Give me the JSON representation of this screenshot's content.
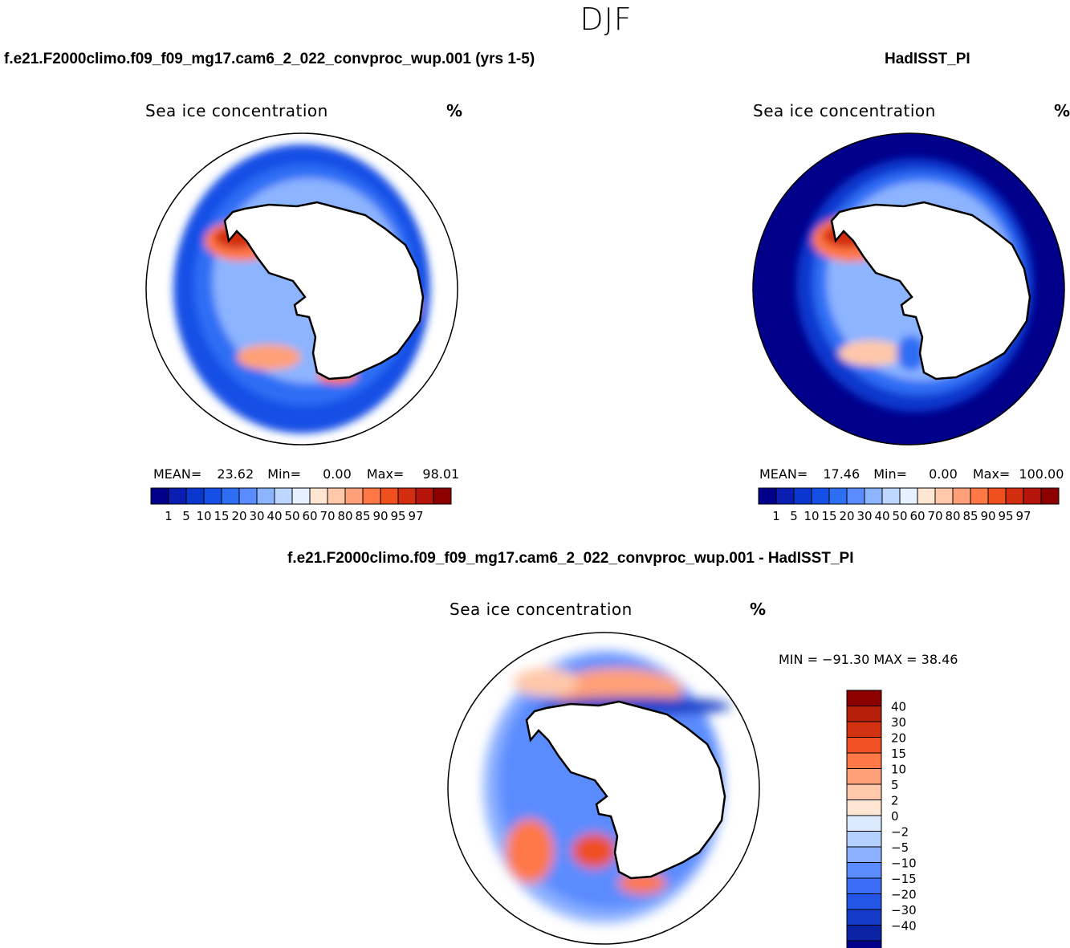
{
  "season": "DJF",
  "panels": [
    {
      "id": "model",
      "case_title": "f.e21.F2000climo.f09_f09_mg17.cam6_2_022_convproc_wup.001 (yrs 1-5)",
      "plot_title": "Sea ice concentration",
      "units": "%",
      "stats": {
        "mean_label": "MEAN=",
        "mean": "23.62",
        "min_label": "Min=",
        "min": "0.00",
        "max_label": "Max=",
        "max": "98.01"
      }
    },
    {
      "id": "obs",
      "case_title": "HadISST_PI",
      "plot_title": "Sea ice concentration",
      "units": "%",
      "stats": {
        "mean_label": "MEAN=",
        "mean": "17.46",
        "min_label": "Min=",
        "min": "0.00",
        "max_label": "Max=",
        "max": "100.00"
      }
    },
    {
      "id": "diff",
      "case_title": "f.e21.F2000climo.f09_f09_mg17.cam6_2_022_convproc_wup.001 - HadISST_PI",
      "plot_title": "Sea ice concentration",
      "units": "%",
      "minmax": "MIN = −91.30 MAX =  38.46"
    }
  ],
  "chart_data": [
    {
      "type": "heatmap",
      "projection": "south polar stereographic",
      "title": "Sea ice concentration",
      "units": "%",
      "mean": 23.62,
      "min": 0.0,
      "max": 98.01,
      "colorbar_levels": [
        "1",
        "5",
        "10",
        "15",
        "20",
        "30",
        "40",
        "50",
        "60",
        "70",
        "80",
        "85",
        "90",
        "95",
        "97"
      ],
      "colors": [
        "#00008b",
        "#0a1eb4",
        "#0a37cd",
        "#1450e6",
        "#2d6ef5",
        "#5a8cff",
        "#8cb4ff",
        "#bed7ff",
        "#e6f0ff",
        "#ffe6d2",
        "#ffc8aa",
        "#ffa078",
        "#ff7846",
        "#f0501e",
        "#d22d0f",
        "#b4140a",
        "#8c0000"
      ]
    },
    {
      "type": "heatmap",
      "projection": "south polar stereographic",
      "title": "Sea ice concentration",
      "units": "%",
      "mean": 17.46,
      "min": 0.0,
      "max": 100.0,
      "colorbar_levels": [
        "1",
        "5",
        "10",
        "15",
        "20",
        "30",
        "40",
        "50",
        "60",
        "70",
        "80",
        "85",
        "90",
        "95",
        "97"
      ]
    },
    {
      "type": "heatmap",
      "projection": "south polar stereographic",
      "title": "Sea ice concentration",
      "units": "%",
      "min": -91.3,
      "max": 38.46,
      "colorbar_levels": [
        "40",
        "30",
        "20",
        "15",
        "10",
        "5",
        "2",
        "0",
        "−2",
        "−5",
        "−10",
        "−15",
        "−20",
        "−30",
        "−40"
      ],
      "colors": [
        "#8c0000",
        "#b4200a",
        "#d2320f",
        "#f05023",
        "#ff7846",
        "#ffa078",
        "#ffc8aa",
        "#ffe6d2",
        "#dceaff",
        "#b4d0ff",
        "#8cb0ff",
        "#5a8cff",
        "#3c6ef5",
        "#2355e6",
        "#143cc8",
        "#0a23a5",
        "#00008b"
      ]
    }
  ]
}
